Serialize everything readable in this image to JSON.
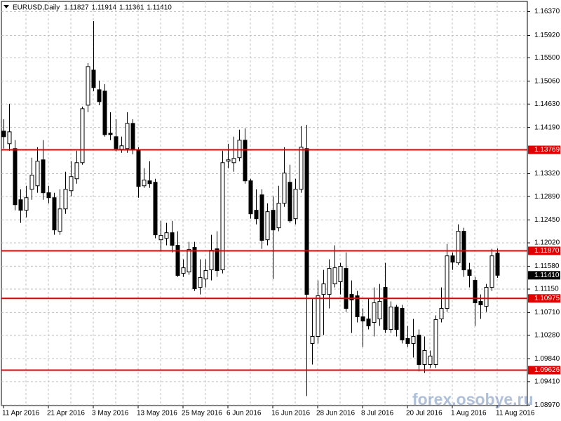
{
  "chart_data": {
    "type": "candlestick",
    "title": "EURUSD,Daily",
    "header_values": [
      "1.11827",
      "1.11914",
      "1.11361",
      "1.11410"
    ],
    "watermark": "forex.osobye.ru",
    "categories": [
      "11 Apr 2016",
      null,
      null,
      null,
      null,
      null,
      null,
      null,
      "21 Apr 2016",
      null,
      null,
      null,
      null,
      null,
      null,
      null,
      "3 May 2016",
      null,
      null,
      null,
      null,
      null,
      null,
      null,
      "13 May 2016",
      null,
      null,
      null,
      null,
      null,
      null,
      null,
      "25 May 2016",
      null,
      null,
      null,
      null,
      null,
      null,
      null,
      "6 Jun 2016",
      null,
      null,
      null,
      null,
      null,
      null,
      null,
      "16 Jun 2016",
      null,
      null,
      null,
      null,
      null,
      null,
      null,
      "28 Jun 2016",
      null,
      null,
      null,
      null,
      null,
      null,
      null,
      "8 Jul 2016",
      null,
      null,
      null,
      null,
      null,
      null,
      null,
      "20 Jul 2016",
      null,
      null,
      null,
      null,
      null,
      null,
      null,
      "1 Aug 2016",
      null,
      null,
      null,
      null,
      null,
      null,
      null,
      "11 Aug 2016"
    ],
    "open": [
      1.14121,
      1.13884,
      1.13792,
      1.1283,
      1.12632,
      1.13027,
      1.13093,
      1.13581,
      1.12962,
      1.12869,
      1.12237,
      1.12658,
      1.13001,
      1.13225,
      1.13528,
      1.14609,
      1.15268,
      1.14899,
      1.14873,
      1.14082,
      1.14016,
      1.13779,
      1.13792,
      1.14266,
      1.13752,
      1.13093,
      1.13186,
      1.13159,
      1.12078,
      1.12105,
      1.1221,
      1.11973,
      1.11446,
      1.11472,
      1.11934,
      1.11182,
      1.1134,
      1.11512,
      1.11907,
      1.11512,
      1.13555,
      1.13528,
      1.13621,
      1.1395,
      1.13186,
      1.12632,
      1.12922,
      1.12078,
      1.12632,
      1.12303,
      1.12764,
      1.13159,
      1.12474,
      1.13027,
      1.13792,
      1.10128,
      1.1026,
      1.1105,
      1.1105,
      1.11248,
      1.11288,
      1.11538,
      1.1105,
      1.11024,
      1.10629,
      1.10589,
      1.10523,
      1.10589,
      1.11182,
      1.10391,
      1.10813,
      1.10787,
      1.1022,
      1.10128,
      1.10286,
      1.09732,
      1.09732,
      1.09732,
      1.10589,
      1.10787,
      1.11775,
      1.11644,
      1.12237,
      1.11512,
      1.11314,
      1.10919,
      1.10826,
      1.11182,
      1.11827
    ],
    "high": [
      1.14345,
      1.14635,
      1.1395,
      1.13027,
      1.13093,
      1.13621,
      1.13818,
      1.1395,
      1.13093,
      1.12962,
      1.13027,
      1.13357,
      1.13555,
      1.13752,
      1.14583,
      1.154,
      1.16191,
      1.1507,
      1.15004,
      1.14477,
      1.14345,
      1.14016,
      1.14477,
      1.14345,
      1.13818,
      1.13423,
      1.13555,
      1.13225,
      1.12434,
      1.12395,
      1.12434,
      1.12237,
      1.11709,
      1.12039,
      1.12039,
      1.11709,
      1.11709,
      1.12171,
      1.12237,
      1.13752,
      1.13884,
      1.14016,
      1.14148,
      1.14174,
      1.13225,
      1.13027,
      1.13027,
      1.12764,
      1.12896,
      1.13093,
      1.13818,
      1.13489,
      1.13225,
      1.14214,
      1.1424,
      1.10985,
      1.11314,
      1.11512,
      1.11709,
      1.11973,
      1.11644,
      1.11841,
      1.11314,
      1.11116,
      1.10787,
      1.10985,
      1.11182,
      1.11248,
      1.11644,
      1.10919,
      1.10853,
      1.10853,
      1.10457,
      1.10589,
      1.10391,
      1.1026,
      1.09996,
      1.10655,
      1.11182,
      1.11999,
      1.11841,
      1.12368,
      1.12303,
      1.11644,
      1.1138,
      1.1105,
      1.11248,
      1.11907,
      1.11914
    ],
    "low": [
      1.13792,
      1.13752,
      1.12632,
      1.12395,
      1.125,
      1.1283,
      1.12962,
      1.1283,
      1.12764,
      1.12171,
      1.12171,
      1.12566,
      1.12896,
      1.13133,
      1.13489,
      1.14477,
      1.14873,
      1.14609,
      1.14016,
      1.1395,
      1.13739,
      1.13713,
      1.13713,
      1.13686,
      1.12869,
      1.13054,
      1.13054,
      1.12105,
      1.11868,
      1.11973,
      1.11841,
      1.1138,
      1.1138,
      1.11419,
      1.11116,
      1.1105,
      1.11182,
      1.11314,
      1.1138,
      1.11446,
      1.13423,
      1.13357,
      1.13555,
      1.13133,
      1.12474,
      1.12368,
      1.11907,
      1.11973,
      1.1134,
      1.12237,
      1.12698,
      1.12395,
      1.12368,
      1.12962,
      1.09139,
      1.09732,
      1.10128,
      1.10286,
      1.10787,
      1.11182,
      1.1105,
      1.10721,
      1.10326,
      1.10523,
      1.10062,
      1.10391,
      1.1026,
      1.10457,
      1.10326,
      1.10326,
      1.1026,
      1.10128,
      1.10062,
      1.09864,
      1.09601,
      1.09574,
      1.09667,
      1.09667,
      1.10523,
      1.10721,
      1.11512,
      1.11604,
      1.1138,
      1.11182,
      1.10457,
      1.10589,
      1.10721,
      1.11116,
      1.11361
    ],
    "close": [
      1.14016,
      1.14108,
      1.12737,
      1.12632,
      1.12869,
      1.13291,
      1.13555,
      1.12962,
      1.12869,
      1.12263,
      1.12658,
      1.13027,
      1.13265,
      1.13528,
      1.14543,
      1.15334,
      1.14939,
      1.14675,
      1.14055,
      1.14055,
      1.13792,
      1.13845,
      1.14266,
      1.13766,
      1.1308,
      1.13199,
      1.13133,
      1.12171,
      1.12158,
      1.1221,
      1.11973,
      1.11406,
      1.11551,
      1.11894,
      1.11156,
      1.11367,
      1.11499,
      1.11881,
      1.11499,
      1.13528,
      1.13581,
      1.13607,
      1.1395,
      1.13186,
      1.12566,
      1.12474,
      1.12065,
      1.12606,
      1.12263,
      1.12764,
      1.13331,
      1.12434,
      1.13027,
      1.13818,
      1.1105,
      1.1026,
      1.11024,
      1.11248,
      1.11538,
      1.11551,
      1.11578,
      1.10787,
      1.10945,
      1.10629,
      1.1055,
      1.10457,
      1.10892,
      1.10919,
      1.10391,
      1.10813,
      1.10391,
      1.10194,
      1.10128,
      1.1026,
      1.09732,
      1.09996,
      1.09891,
      1.10576,
      1.10787,
      1.11775,
      1.11657,
      1.12237,
      1.11512,
      1.11406,
      1.10892,
      1.10853,
      1.11182,
      1.11775,
      1.1141
    ],
    "bull_color": "#ffffff",
    "bear_color": "#000000",
    "ylim": [
      1.0896,
      1.1656
    ],
    "yticks": [
      {
        "value": 1.1637,
        "label": "1.16370"
      },
      {
        "value": 1.1592,
        "label": "1.15920"
      },
      {
        "value": 1.155,
        "label": "1.15500"
      },
      {
        "value": 1.1506,
        "label": "1.15060"
      },
      {
        "value": 1.1463,
        "label": "1.14630"
      },
      {
        "value": 1.1419,
        "label": "1.14190"
      },
      {
        "value": 1.1332,
        "label": "1.13320"
      },
      {
        "value": 1.1289,
        "label": "1.12890"
      },
      {
        "value": 1.1245,
        "label": "1.12450"
      },
      {
        "value": 1.1202,
        "label": "1.12020"
      },
      {
        "value": 1.1158,
        "label": "1.11580"
      },
      {
        "value": 1.1115,
        "label": "1.11150"
      },
      {
        "value": 1.1071,
        "label": "1.10710"
      },
      {
        "value": 1.1028,
        "label": "1.10280"
      },
      {
        "value": 1.0984,
        "label": "1.09840"
      },
      {
        "value": 1.0941,
        "label": "1.09410"
      },
      {
        "value": 1.0897,
        "label": "1.08970"
      }
    ],
    "grid": true,
    "levels": [
      {
        "value": 1.13769,
        "label": "1.13769"
      },
      {
        "value": 1.1187,
        "label": "1.11870"
      },
      {
        "value": 1.10975,
        "label": "1.10975"
      },
      {
        "value": 1.09626,
        "label": "1.09626"
      }
    ],
    "level_color": "#e00000",
    "current_price": {
      "value": 1.1141,
      "label": "1.11410"
    }
  }
}
